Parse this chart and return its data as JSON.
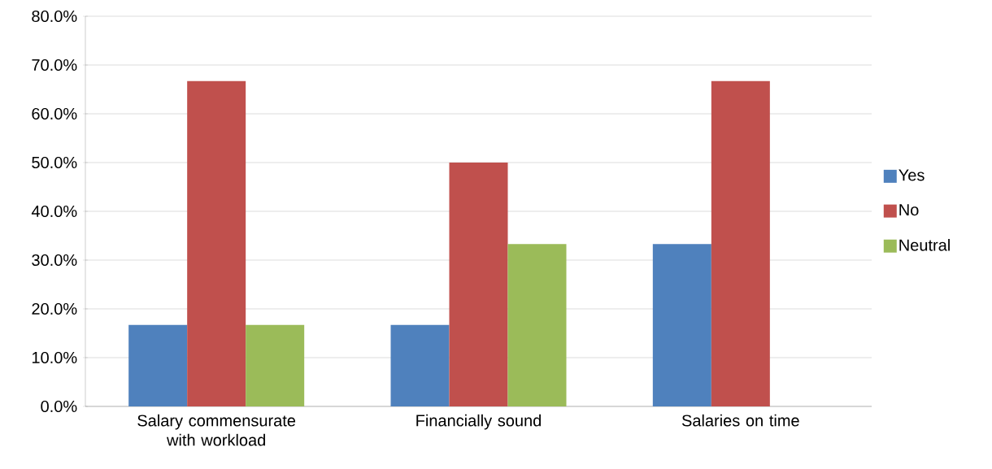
{
  "chart_data": {
    "type": "bar",
    "categories": [
      "Salary commensurate with workload",
      "Financially sound",
      "Salaries on time"
    ],
    "series": [
      {
        "name": "Yes",
        "color": "#4f81bd",
        "values": [
          16.7,
          16.7,
          33.3
        ]
      },
      {
        "name": "No",
        "color": "#c0504d",
        "values": [
          66.7,
          50.0,
          66.7
        ]
      },
      {
        "name": "Neutral",
        "color": "#9bbb59",
        "values": [
          16.7,
          33.3,
          0
        ]
      }
    ],
    "ylim": [
      0,
      80
    ],
    "yticks": [
      {
        "value": 0,
        "label": "0.0%"
      },
      {
        "value": 10,
        "label": "10.0%"
      },
      {
        "value": 20,
        "label": "20.0%"
      },
      {
        "value": 30,
        "label": "30.0%"
      },
      {
        "value": 40,
        "label": "40.0%"
      },
      {
        "value": 50,
        "label": "50.0%"
      },
      {
        "value": 60,
        "label": "60.0%"
      },
      {
        "value": 70,
        "label": "70.0%"
      },
      {
        "value": 80,
        "label": "80.0%"
      }
    ],
    "grid": "y",
    "legend": "right"
  }
}
